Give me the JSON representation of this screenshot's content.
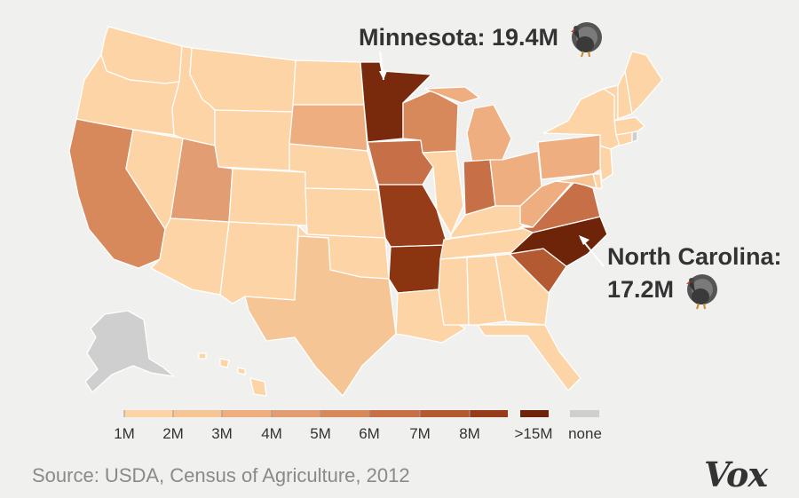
{
  "callouts": {
    "minnesota": "Minnesota: 19.4M",
    "nc_line1": "North Carolina:",
    "nc_line2": "17.2M",
    "icon": "turkey-icon"
  },
  "legend": {
    "labels": [
      "1M",
      "2M",
      "3M",
      "4M",
      "5M",
      "6M",
      "7M",
      "8M",
      ">15M",
      "none"
    ],
    "colors": [
      "#fdd4a6",
      "#f6c596",
      "#eeae80",
      "#e39d72",
      "#d8895b",
      "#c77048",
      "#b45a32",
      "#963c18",
      "#6d2408",
      "#cfcfcf"
    ]
  },
  "source": "Source: USDA, Census of Agriculture, 2012",
  "brand": "Vox",
  "colors": {
    "background": "#f0f0ef",
    "border": "#ffffff"
  },
  "states": [
    {
      "id": "WA",
      "color": "#fdd4a6"
    },
    {
      "id": "OR",
      "color": "#fdd4a6"
    },
    {
      "id": "CA",
      "color": "#d8895b"
    },
    {
      "id": "NV",
      "color": "#fdd4a6"
    },
    {
      "id": "ID",
      "color": "#fdd4a6"
    },
    {
      "id": "MT",
      "color": "#fdd4a6"
    },
    {
      "id": "WY",
      "color": "#fdd4a6"
    },
    {
      "id": "UT",
      "color": "#e39d72"
    },
    {
      "id": "AZ",
      "color": "#fdd4a6"
    },
    {
      "id": "CO",
      "color": "#fdd4a6"
    },
    {
      "id": "NM",
      "color": "#fdd4a6"
    },
    {
      "id": "ND",
      "color": "#fdd4a6"
    },
    {
      "id": "SD",
      "color": "#eeae80"
    },
    {
      "id": "NE",
      "color": "#fdd4a6"
    },
    {
      "id": "KS",
      "color": "#fdd4a6"
    },
    {
      "id": "OK",
      "color": "#fdd4a6"
    },
    {
      "id": "TX",
      "color": "#f6c596"
    },
    {
      "id": "MN",
      "color": "#7a2a0c"
    },
    {
      "id": "IA",
      "color": "#c77048"
    },
    {
      "id": "MO",
      "color": "#963c18"
    },
    {
      "id": "AR",
      "color": "#8a3410"
    },
    {
      "id": "LA",
      "color": "#fdd4a6"
    },
    {
      "id": "WI",
      "color": "#d8895b"
    },
    {
      "id": "IL",
      "color": "#fdd4a6"
    },
    {
      "id": "MI",
      "color": "#eeae80"
    },
    {
      "id": "IN",
      "color": "#c77048"
    },
    {
      "id": "OH",
      "color": "#eeae80"
    },
    {
      "id": "KY",
      "color": "#fdd4a6"
    },
    {
      "id": "TN",
      "color": "#fdd4a6"
    },
    {
      "id": "MS",
      "color": "#fdd4a6"
    },
    {
      "id": "AL",
      "color": "#fdd4a6"
    },
    {
      "id": "GA",
      "color": "#fdd4a6"
    },
    {
      "id": "FL",
      "color": "#fdd4a6"
    },
    {
      "id": "SC",
      "color": "#b45a32"
    },
    {
      "id": "NC",
      "color": "#6d2408"
    },
    {
      "id": "VA",
      "color": "#c77048"
    },
    {
      "id": "WV",
      "color": "#eeae80"
    },
    {
      "id": "PA",
      "color": "#eeae80"
    },
    {
      "id": "NY",
      "color": "#fdd4a6"
    },
    {
      "id": "NJ",
      "color": "#fdd4a6"
    },
    {
      "id": "MD",
      "color": "#f6c596"
    },
    {
      "id": "DE",
      "color": "#fdd4a6"
    },
    {
      "id": "CT",
      "color": "#fdd4a6"
    },
    {
      "id": "RI",
      "color": "#cfcfcf"
    },
    {
      "id": "MA",
      "color": "#fdd4a6"
    },
    {
      "id": "VT",
      "color": "#fdd4a6"
    },
    {
      "id": "NH",
      "color": "#fdd4a6"
    },
    {
      "id": "ME",
      "color": "#fdd4a6"
    },
    {
      "id": "AK",
      "color": "#cfcfcf"
    },
    {
      "id": "HI",
      "color": "#fdd4a6"
    }
  ]
}
